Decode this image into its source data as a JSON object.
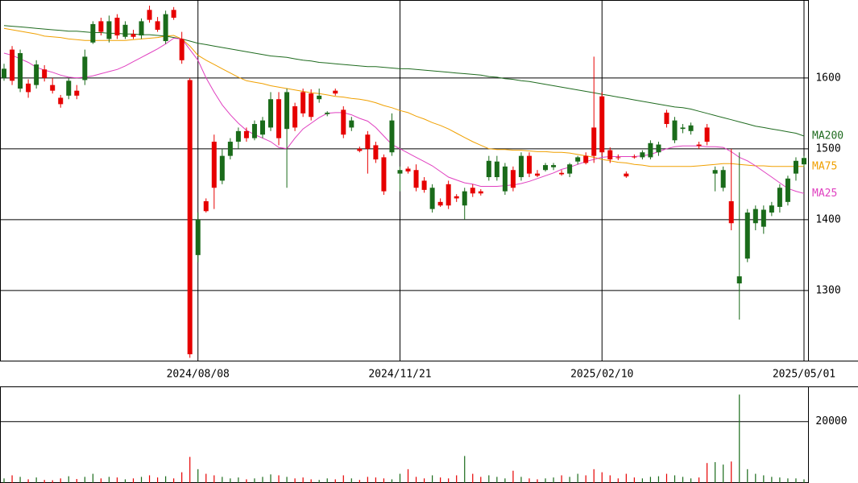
{
  "chart_data": [
    {
      "type": "candlestick",
      "categories": [
        null,
        null,
        null,
        null,
        null,
        null,
        null,
        null,
        null,
        null,
        null,
        null,
        null,
        null,
        null,
        null,
        null,
        null,
        null,
        null,
        null,
        null,
        null,
        null,
        "2024/08/08",
        null,
        null,
        null,
        null,
        null,
        null,
        null,
        null,
        null,
        null,
        null,
        null,
        null,
        null,
        null,
        null,
        null,
        null,
        null,
        null,
        null,
        null,
        null,
        null,
        "2024/11/21",
        null,
        null,
        null,
        null,
        null,
        null,
        null,
        null,
        null,
        null,
        null,
        null,
        null,
        null,
        null,
        null,
        null,
        null,
        null,
        null,
        null,
        null,
        null,
        null,
        "2025/02/10",
        null,
        null,
        null,
        null,
        null,
        null,
        null,
        null,
        null,
        null,
        null,
        null,
        null,
        null,
        null,
        null,
        null,
        null,
        null,
        null,
        null,
        null,
        null,
        null,
        "2025/05/01"
      ],
      "open": [
        1600,
        1640,
        1585,
        1592,
        1590,
        1612,
        1590,
        1572,
        1575,
        1582,
        1597,
        1650,
        1680,
        1655,
        1685,
        1658,
        1662,
        1660,
        1696,
        1680,
        1652,
        1696,
        1655,
        1597,
        1350,
        1426,
        1510,
        1455,
        1490,
        1510,
        1525,
        1515,
        1520,
        1530,
        1570,
        1528,
        1560,
        1580,
        1578,
        1570,
        1549,
        1582,
        1555,
        1530,
        1500,
        1520,
        1505,
        1488,
        1495,
        1465,
        1472,
        1470,
        1455,
        1415,
        1425,
        1450,
        1433,
        1420,
        1445,
        1440,
        1460,
        1460,
        1440,
        1470,
        1460,
        1490,
        1465,
        1470,
        1474,
        1466,
        1465,
        1482,
        1490,
        1530,
        1574,
        1498,
        1488,
        1465,
        1489,
        1488,
        1488,
        1495,
        1551,
        1512,
        1528,
        1525,
        1506,
        1530,
        1465,
        1445,
        1426,
        1310,
        1345,
        1395,
        1390,
        1410,
        1418,
        1425,
        1465,
        1478
      ],
      "high": [
        1620,
        1645,
        1640,
        1598,
        1625,
        1618,
        1600,
        1576,
        1600,
        1590,
        1640,
        1680,
        1685,
        1688,
        1690,
        1680,
        1668,
        1684,
        1702,
        1686,
        1695,
        1700,
        1665,
        1600,
        1410,
        1430,
        1520,
        1500,
        1515,
        1530,
        1530,
        1540,
        1545,
        1580,
        1580,
        1585,
        1565,
        1585,
        1584,
        1585,
        1553,
        1585,
        1560,
        1545,
        1503,
        1525,
        1510,
        1492,
        1550,
        1475,
        1475,
        1478,
        1460,
        1450,
        1430,
        1455,
        1436,
        1445,
        1450,
        1443,
        1490,
        1490,
        1480,
        1475,
        1495,
        1495,
        1470,
        1480,
        1480,
        1470,
        1480,
        1490,
        1495,
        1630,
        1580,
        1502,
        1492,
        1468,
        1492,
        1498,
        1512,
        1510,
        1555,
        1545,
        1535,
        1537,
        1510,
        1535,
        1475,
        1475,
        1500,
        1495,
        1415,
        1420,
        1420,
        1425,
        1450,
        1462,
        1488,
        1490
      ],
      "low": [
        1596,
        1590,
        1580,
        1572,
        1585,
        1595,
        1578,
        1558,
        1570,
        1570,
        1590,
        1648,
        1660,
        1650,
        1655,
        1655,
        1655,
        1655,
        1678,
        1665,
        1648,
        1682,
        1620,
        1205,
        1340,
        1410,
        1415,
        1450,
        1485,
        1500,
        1510,
        1512,
        1515,
        1525,
        1505,
        1445,
        1525,
        1545,
        1540,
        1565,
        1546,
        1575,
        1515,
        1525,
        1495,
        1465,
        1480,
        1435,
        1490,
        1440,
        1465,
        1440,
        1438,
        1410,
        1418,
        1415,
        1425,
        1400,
        1432,
        1434,
        1455,
        1455,
        1435,
        1440,
        1455,
        1460,
        1460,
        1468,
        1470,
        1462,
        1460,
        1478,
        1478,
        1480,
        1490,
        1480,
        1484,
        1459,
        1486,
        1485,
        1485,
        1490,
        1530,
        1508,
        1522,
        1520,
        1500,
        1505,
        1440,
        1440,
        1385,
        1259,
        1340,
        1385,
        1380,
        1405,
        1410,
        1420,
        1455,
        1474
      ],
      "close": [
        1613,
        1596,
        1635,
        1580,
        1619,
        1600,
        1582,
        1563,
        1596,
        1575,
        1630,
        1676,
        1665,
        1680,
        1660,
        1675,
        1658,
        1680,
        1682,
        1668,
        1690,
        1685,
        1625,
        1210,
        1400,
        1412,
        1445,
        1490,
        1510,
        1525,
        1515,
        1535,
        1540,
        1570,
        1515,
        1580,
        1530,
        1550,
        1545,
        1575,
        1551,
        1578,
        1520,
        1540,
        1497,
        1500,
        1485,
        1440,
        1540,
        1470,
        1468,
        1445,
        1442,
        1445,
        1420,
        1420,
        1430,
        1440,
        1437,
        1437,
        1483,
        1482,
        1475,
        1445,
        1490,
        1465,
        1462,
        1477,
        1477,
        1464,
        1478,
        1488,
        1480,
        1490,
        1495,
        1485,
        1487,
        1461,
        1488,
        1495,
        1508,
        1506,
        1535,
        1540,
        1530,
        1533,
        1504,
        1510,
        1470,
        1470,
        1395,
        1320,
        1410,
        1415,
        1414,
        1420,
        1445,
        1458,
        1483,
        1487
      ],
      "up_color": "#1a6b1a",
      "down_color": "#e60000",
      "ylim": [
        1201,
        1710
      ],
      "yticks": [
        1300,
        1400,
        1500,
        1600
      ],
      "grid": true,
      "series": [
        {
          "name": "MA200",
          "color": "#1f6b1f",
          "values": [
            1674,
            1673,
            1672,
            1671,
            1670,
            1669,
            1668,
            1667,
            1666,
            1666,
            1665,
            1664,
            1664,
            1663,
            1663,
            1662,
            1662,
            1661,
            1661,
            1660,
            1659,
            1657,
            1655,
            1652,
            1649,
            1647,
            1645,
            1643,
            1641,
            1639,
            1637,
            1635,
            1633,
            1631,
            1630,
            1629,
            1627,
            1625,
            1624,
            1622,
            1621,
            1620,
            1619,
            1618,
            1617,
            1616,
            1616,
            1615,
            1614,
            1613,
            1613,
            1612,
            1611,
            1610,
            1609,
            1608,
            1607,
            1606,
            1605,
            1604,
            1602,
            1601,
            1599,
            1598,
            1596,
            1595,
            1593,
            1591,
            1589,
            1587,
            1585,
            1583,
            1581,
            1579,
            1577,
            1575,
            1573,
            1571,
            1569,
            1567,
            1565,
            1563,
            1561,
            1559,
            1558,
            1556,
            1553,
            1550,
            1547,
            1544,
            1541,
            1538,
            1535,
            1532,
            1530,
            1528,
            1526,
            1524,
            1522,
            1518
          ]
        },
        {
          "name": "MA75",
          "color": "#f0a000",
          "values": [
            1670,
            1668,
            1666,
            1664,
            1662,
            1659,
            1658,
            1657,
            1655,
            1654,
            1653,
            1653,
            1653,
            1653,
            1653,
            1653,
            1654,
            1655,
            1656,
            1657,
            1659,
            1660,
            1655,
            1645,
            1632,
            1625,
            1619,
            1613,
            1607,
            1601,
            1596,
            1594,
            1592,
            1589,
            1587,
            1585,
            1583,
            1581,
            1579,
            1578,
            1576,
            1574,
            1573,
            1571,
            1570,
            1568,
            1565,
            1561,
            1558,
            1554,
            1551,
            1546,
            1542,
            1537,
            1533,
            1528,
            1522,
            1516,
            1510,
            1505,
            1500,
            1499,
            1499,
            1498,
            1498,
            1497,
            1496,
            1496,
            1495,
            1495,
            1494,
            1492,
            1490,
            1488,
            1485,
            1483,
            1481,
            1480,
            1478,
            1477,
            1475,
            1475,
            1475,
            1475,
            1475,
            1475,
            1476,
            1477,
            1478,
            1479,
            1479,
            1478,
            1477,
            1476,
            1476,
            1475,
            1475,
            1475,
            1475,
            1475
          ]
        },
        {
          "name": "MA25",
          "color": "#e040c0",
          "values": [
            1635,
            1632,
            1627,
            1622,
            1615,
            1611,
            1608,
            1604,
            1601,
            1600,
            1601,
            1603,
            1606,
            1609,
            1612,
            1617,
            1623,
            1629,
            1635,
            1641,
            1648,
            1656,
            1655,
            1640,
            1625,
            1600,
            1580,
            1562,
            1548,
            1536,
            1526,
            1520,
            1515,
            1510,
            1502,
            1500,
            1515,
            1528,
            1536,
            1544,
            1550,
            1551,
            1551,
            1548,
            1543,
            1539,
            1530,
            1518,
            1506,
            1500,
            1494,
            1488,
            1482,
            1476,
            1468,
            1460,
            1456,
            1452,
            1450,
            1447,
            1447,
            1447,
            1448,
            1449,
            1451,
            1454,
            1458,
            1462,
            1466,
            1471,
            1474,
            1478,
            1482,
            1485,
            1488,
            1489,
            1489,
            1489,
            1489,
            1490,
            1492,
            1496,
            1500,
            1503,
            1504,
            1504,
            1504,
            1503,
            1503,
            1502,
            1496,
            1488,
            1483,
            1476,
            1468,
            1460,
            1452,
            1444,
            1440,
            1437
          ]
        }
      ]
    },
    {
      "type": "bar",
      "values": [
        1500,
        2500,
        2000,
        1200,
        1800,
        1000,
        900,
        1500,
        2200,
        1300,
        2000,
        3000,
        1500,
        2000,
        1800,
        1200,
        1500,
        2000,
        2500,
        1800,
        2200,
        1500,
        3500,
        8500,
        4500,
        3000,
        2500,
        2000,
        1500,
        1800,
        1200,
        1500,
        2000,
        2800,
        2500,
        2000,
        1500,
        1800,
        1200,
        1000,
        1500,
        1200,
        2500,
        1500,
        1000,
        2000,
        1800,
        1500,
        1200,
        3000,
        4500,
        2000,
        1500,
        2500,
        1800,
        1500,
        2500,
        8800,
        3000,
        2000,
        2500,
        2000,
        1500,
        4000,
        2000,
        1500,
        1200,
        1500,
        1800,
        2500,
        2000,
        3000,
        2500,
        4500,
        3500,
        2500,
        1500,
        3000,
        1800,
        1500,
        2000,
        2200,
        3000,
        2500,
        2000,
        1500,
        1800,
        6500,
        6800,
        6000,
        7000,
        28800,
        4500,
        3000,
        2500,
        2000,
        1800,
        1500,
        1500,
        1200
      ],
      "ylim": [
        0,
        31200
      ],
      "yticks": [
        20000
      ],
      "grid": true
    }
  ]
}
